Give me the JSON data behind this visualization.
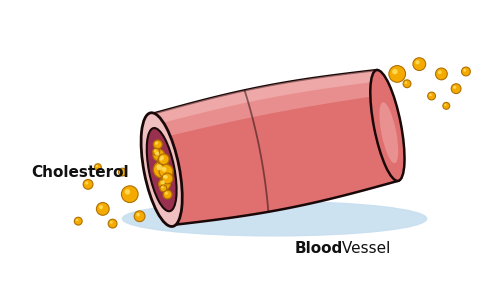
{
  "background_color": "#ffffff",
  "vessel_main_color": "#e07070",
  "vessel_mid_color": "#d96060",
  "vessel_highlight_color": "#f0a8a8",
  "vessel_bright_highlight": "#f8c8c8",
  "vessel_dark_color": "#b84040",
  "vessel_outline_color": "#1a0808",
  "vessel_wall_color": "#f0c0c0",
  "vessel_lumen_color": "#9a3050",
  "vessel_lumen_dark": "#7a2040",
  "shadow_color": "#c8dff0",
  "cholesterol_fill": "#f5aa00",
  "cholesterol_highlight": "#ffe060",
  "cholesterol_outline": "#b07000",
  "label_cholesterol": "Cholesterol",
  "label_blood": "Blood",
  "label_vessel": " Vessel",
  "label_fontsize": 11,
  "blood_fontsize": 11
}
